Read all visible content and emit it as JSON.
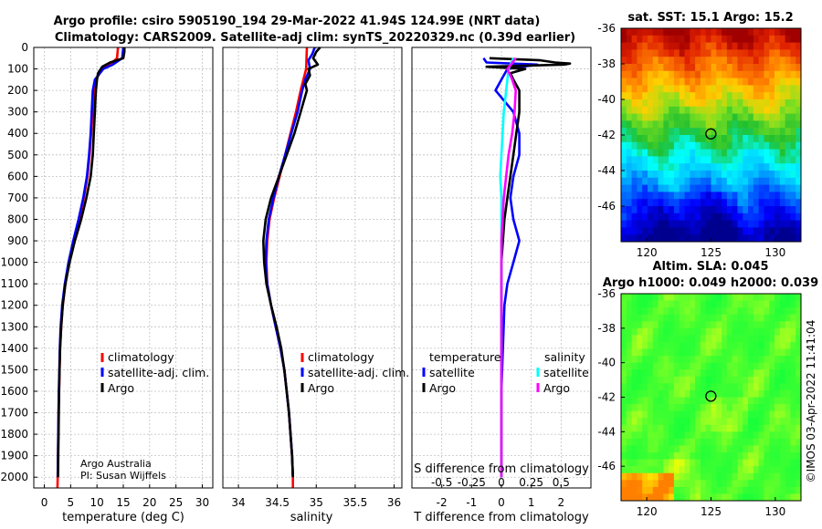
{
  "figure": {
    "title_line1": "Argo profile: csiro 5905190_194 29-Mar-2022 41.94S 124.99E (NRT data)",
    "title_line2": "Climatology: CARS2009. Satellite-adj clim: synTS_20220329.nc (0.39d earlier)",
    "credit_line1": "Argo Australia",
    "credit_line2": "PI: Susan Wijffels",
    "side_label": "©IMOS 03-Apr-2022 11:41:04"
  },
  "colors": {
    "climatology": "#ff0000",
    "satellite": "#0000ff",
    "argo": "#000000",
    "sal_satellite": "#00ffff",
    "sal_argo": "#ff00ff"
  },
  "chart_data": [
    {
      "type": "line",
      "id": "temperature",
      "xlabel": "temperature (deg C)",
      "ylabel": "",
      "xlim": [
        -2,
        32
      ],
      "ylim": [
        0,
        2050
      ],
      "y_reversed": true,
      "grid": true,
      "xticks": [
        0,
        5,
        10,
        15,
        20,
        25,
        30
      ],
      "yticks": [
        0,
        100,
        200,
        300,
        400,
        500,
        600,
        700,
        800,
        900,
        1000,
        1100,
        1200,
        1300,
        1400,
        1500,
        1600,
        1700,
        1800,
        1900,
        2000
      ],
      "legend": {
        "position": "lower-right",
        "entries": [
          "climatology",
          "satellite-adj. clim.",
          "Argo"
        ]
      },
      "series": [
        {
          "name": "climatology",
          "color": "#ff0000",
          "y": [
            0,
            50,
            80,
            100,
            150,
            200,
            300,
            400,
            500,
            600,
            700,
            800,
            900,
            1000,
            1100,
            1200,
            1300,
            1400,
            1500,
            1600,
            1700,
            1800,
            1900,
            2000,
            2050
          ],
          "x": [
            14.0,
            13.8,
            12.5,
            11.0,
            9.8,
            9.4,
            9.2,
            8.9,
            8.6,
            8.2,
            7.5,
            6.6,
            5.6,
            4.7,
            4.0,
            3.5,
            3.2,
            3.0,
            2.9,
            2.8,
            2.7,
            2.65,
            2.6,
            2.55,
            2.5
          ]
        },
        {
          "name": "satellite-adj. clim.",
          "color": "#0000ff",
          "y": [
            0,
            50,
            80,
            100,
            150,
            200,
            300,
            400,
            500,
            600,
            700,
            800,
            900,
            1000,
            1100,
            1200,
            1300,
            1400,
            1500,
            1600,
            1700,
            1800,
            1900,
            2000
          ],
          "x": [
            15.0,
            14.8,
            13.0,
            11.2,
            9.6,
            9.2,
            9.0,
            8.8,
            8.5,
            8.1,
            7.4,
            6.5,
            5.5,
            4.6,
            3.9,
            3.4,
            3.1,
            2.95,
            2.85,
            2.75,
            2.7,
            2.65,
            2.6,
            2.55
          ]
        },
        {
          "name": "Argo",
          "color": "#000000",
          "y": [
            0,
            20,
            50,
            70,
            90,
            120,
            150,
            200,
            250,
            300,
            400,
            500,
            600,
            700,
            800,
            900,
            1000,
            1100,
            1200,
            1300,
            1400,
            1500,
            1600,
            1700,
            1800,
            1900,
            2000
          ],
          "x": [
            15.2,
            15.2,
            15.0,
            12.5,
            11.0,
            10.2,
            10.0,
            9.8,
            9.7,
            9.6,
            9.4,
            9.2,
            8.8,
            8.0,
            7.0,
            5.8,
            4.8,
            4.0,
            3.5,
            3.2,
            3.0,
            2.9,
            2.8,
            2.75,
            2.7,
            2.65,
            2.6
          ]
        }
      ]
    },
    {
      "type": "line",
      "id": "salinity",
      "xlabel": "salinity",
      "ylabel": "",
      "xlim": [
        33.8,
        36.1
      ],
      "ylim": [
        0,
        2050
      ],
      "y_reversed": true,
      "grid": true,
      "xticks": [
        34,
        34.5,
        35,
        35.5,
        36
      ],
      "xtick_labels": [
        "34",
        "34.5",
        "35",
        "35.5",
        "36"
      ],
      "legend": {
        "position": "lower-right",
        "entries": [
          "climatology",
          "satellite-adj. clim.",
          "Argo"
        ]
      },
      "series": [
        {
          "name": "climatology",
          "color": "#ff0000",
          "y": [
            0,
            100,
            200,
            300,
            400,
            500,
            600,
            700,
            800,
            900,
            1000,
            1100,
            1200,
            1300,
            1400,
            1500,
            1600,
            1700,
            1800,
            1900,
            2000,
            2050
          ],
          "x": [
            34.88,
            34.87,
            34.8,
            34.74,
            34.67,
            34.6,
            34.53,
            34.46,
            34.4,
            34.37,
            34.36,
            34.37,
            34.42,
            34.48,
            34.54,
            34.59,
            34.62,
            34.65,
            34.67,
            34.69,
            34.7,
            34.7
          ]
        },
        {
          "name": "satellite-adj. clim.",
          "color": "#0000ff",
          "y": [
            0,
            30,
            60,
            100,
            150,
            200,
            300,
            400,
            500,
            600,
            700,
            800,
            900,
            1000,
            1100,
            1200,
            1300,
            1400,
            1500,
            1600,
            1700,
            1800,
            1900,
            2000
          ],
          "x": [
            34.98,
            34.95,
            34.9,
            34.92,
            34.86,
            34.82,
            34.76,
            34.68,
            34.6,
            34.52,
            34.45,
            34.39,
            34.36,
            34.35,
            34.37,
            34.42,
            34.48,
            34.54,
            34.59,
            34.62,
            34.65,
            34.67,
            34.69,
            34.7
          ]
        },
        {
          "name": "Argo",
          "color": "#000000",
          "y": [
            0,
            20,
            50,
            80,
            100,
            130,
            170,
            200,
            250,
            300,
            400,
            500,
            600,
            700,
            800,
            900,
            1000,
            1100,
            1200,
            1300,
            1400,
            1500,
            1600,
            1700,
            1800,
            1900,
            2000
          ],
          "x": [
            35.05,
            35.0,
            34.96,
            35.02,
            34.9,
            34.92,
            34.86,
            34.88,
            34.84,
            34.8,
            34.72,
            34.62,
            34.52,
            34.42,
            34.35,
            34.32,
            34.33,
            34.36,
            34.42,
            34.49,
            34.55,
            34.59,
            34.62,
            34.65,
            34.67,
            34.69,
            34.7
          ]
        }
      ]
    },
    {
      "type": "line",
      "id": "difference",
      "xlabel": "T difference from climatology",
      "xlabel_top": "S difference from climatology",
      "xlim": [
        -3,
        3
      ],
      "ylim": [
        0,
        2050
      ],
      "y_reversed": true,
      "grid": true,
      "xticks": [
        -2,
        -1,
        0,
        1,
        2
      ],
      "xtick_labels": [
        "-2",
        "-1",
        "0",
        "1",
        "2"
      ],
      "sticks": [
        -0.5,
        -0.25,
        0,
        0.25,
        0.5
      ],
      "stick_labels": [
        "-0.5",
        "-0.25",
        "0",
        "0.25",
        "0.5"
      ],
      "s_scale": 4,
      "legend_temperature": {
        "title": "temperature",
        "entries": [
          "satellite",
          "Argo"
        ]
      },
      "legend_salinity": {
        "title": "salinity",
        "entries": [
          "satellite",
          "Argo"
        ]
      },
      "series": [
        {
          "name": "temperature satellite",
          "color": "#0000ff",
          "y": [
            50,
            70,
            80,
            100,
            150,
            200,
            300,
            400,
            500,
            600,
            700,
            800,
            900,
            1000,
            1100,
            1200,
            1400,
            1600,
            1800,
            2000
          ],
          "x": [
            -0.6,
            -0.5,
            1.2,
            0.2,
            0.0,
            -0.2,
            0.4,
            0.6,
            0.6,
            0.4,
            0.3,
            0.4,
            0.6,
            0.4,
            0.2,
            0.1,
            0.05,
            0.0,
            0.0,
            0.0
          ]
        },
        {
          "name": "temperature Argo",
          "color": "#000000",
          "y": [
            50,
            60,
            70,
            75,
            80,
            90,
            100,
            120,
            150,
            200,
            250,
            300,
            400,
            500,
            600,
            700,
            800,
            900,
            1000,
            1100,
            1200,
            1400,
            1600,
            1800,
            2000
          ],
          "x": [
            -0.4,
            1.3,
            1.8,
            2.3,
            2.1,
            -0.5,
            0.8,
            0.3,
            0.4,
            0.6,
            0.6,
            0.6,
            0.5,
            0.4,
            0.3,
            0.2,
            0.1,
            0.05,
            0.0,
            0.0,
            0.0,
            0.0,
            0.0,
            0.0,
            0.0
          ]
        },
        {
          "name": "salinity satellite",
          "color": "#00ffff",
          "y": [
            50,
            100,
            150,
            200,
            300,
            400,
            500,
            600,
            700,
            800,
            1000,
            1200,
            1400,
            1600,
            1800,
            2000
          ],
          "x": [
            0.1,
            0.06,
            0.05,
            0.04,
            0.02,
            0.01,
            0.0,
            -0.01,
            0.0,
            0.0,
            0.0,
            0.0,
            0.0,
            0.0,
            0.0,
            0.0
          ]
        },
        {
          "name": "salinity Argo",
          "color": "#ff00ff",
          "y": [
            50,
            80,
            100,
            150,
            200,
            300,
            400,
            500,
            600,
            700,
            800,
            900,
            1000,
            1200,
            1400,
            1600,
            1800,
            2000
          ],
          "x": [
            0.12,
            0.08,
            0.05,
            0.09,
            0.12,
            0.11,
            0.09,
            0.06,
            0.04,
            0.02,
            0.01,
            0.0,
            0.0,
            0.0,
            0.0,
            0.0,
            0.0,
            0.0
          ]
        }
      ]
    },
    {
      "type": "heatmap",
      "id": "sst_map",
      "title": "sat. SST: 15.1 Argo: 15.2",
      "xlim": [
        118,
        132
      ],
      "ylim": [
        -48,
        -36
      ],
      "xticks": [
        120,
        125,
        130
      ],
      "yticks": [
        -36,
        -38,
        -40,
        -42,
        -44,
        -46
      ],
      "marker": {
        "lon": 124.99,
        "lat": -41.94
      },
      "field": "sst"
    },
    {
      "type": "heatmap",
      "id": "sla_map",
      "title_line1": "Altim. SLA: 0.045",
      "title_line2": "Argo h1000: 0.049 h2000: 0.039",
      "xlim": [
        118,
        132
      ],
      "ylim": [
        -48,
        -36
      ],
      "xticks": [
        120,
        125,
        130
      ],
      "yticks": [
        -36,
        -38,
        -40,
        -42,
        -44,
        -46
      ],
      "marker": {
        "lon": 124.99,
        "lat": -41.94
      },
      "field": "sla"
    }
  ]
}
